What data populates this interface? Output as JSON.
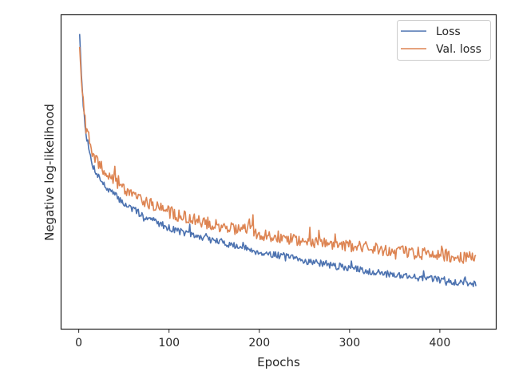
{
  "chart_data": {
    "type": "line",
    "title": "",
    "xlabel": "Epochs",
    "ylabel": "Negative log-likelihood",
    "xlim": [
      -20,
      462
    ],
    "ylim": [
      0,
      1
    ],
    "x_ticks": [
      0,
      100,
      200,
      300,
      400
    ],
    "y_tick_labels_shown": false,
    "grid": false,
    "legend_position": "upper right",
    "series": [
      {
        "name": "Loss",
        "color": "#4c72b0",
        "x": [
          1,
          3,
          5,
          8,
          12,
          15,
          20,
          25,
          30,
          40,
          50,
          60,
          70,
          80,
          90,
          100,
          110,
          120,
          130,
          140,
          150,
          160,
          170,
          180,
          190,
          200,
          210,
          220,
          230,
          240,
          250,
          260,
          270,
          280,
          290,
          300,
          320,
          340,
          360,
          380,
          400,
          420,
          440
        ],
        "values": [
          0.965,
          0.82,
          0.72,
          0.62,
          0.55,
          0.51,
          0.48,
          0.455,
          0.43,
          0.405,
          0.375,
          0.355,
          0.335,
          0.32,
          0.305,
          0.29,
          0.28,
          0.27,
          0.26,
          0.255,
          0.245,
          0.24,
          0.23,
          0.222,
          0.215,
          0.205,
          0.2,
          0.195,
          0.19,
          0.182,
          0.175,
          0.172,
          0.165,
          0.158,
          0.155,
          0.15,
          0.14,
          0.13,
          0.125,
          0.115,
          0.11,
          0.1,
          0.095
        ]
      },
      {
        "name": "Val. loss",
        "color": "#dd8452",
        "x": [
          1,
          3,
          5,
          8,
          12,
          15,
          20,
          25,
          30,
          40,
          50,
          60,
          70,
          80,
          90,
          100,
          110,
          120,
          130,
          140,
          150,
          160,
          170,
          180,
          190,
          200,
          210,
          220,
          230,
          240,
          250,
          260,
          270,
          280,
          290,
          300,
          320,
          340,
          360,
          380,
          400,
          420,
          440
        ],
        "values": [
          0.92,
          0.8,
          0.72,
          0.64,
          0.59,
          0.55,
          0.52,
          0.5,
          0.48,
          0.455,
          0.43,
          0.41,
          0.39,
          0.375,
          0.36,
          0.345,
          0.335,
          0.325,
          0.315,
          0.31,
          0.3,
          0.295,
          0.29,
          0.283,
          0.278,
          0.27,
          0.265,
          0.26,
          0.255,
          0.25,
          0.245,
          0.243,
          0.24,
          0.235,
          0.232,
          0.228,
          0.22,
          0.212,
          0.207,
          0.2,
          0.195,
          0.19,
          0.185
        ]
      }
    ]
  }
}
